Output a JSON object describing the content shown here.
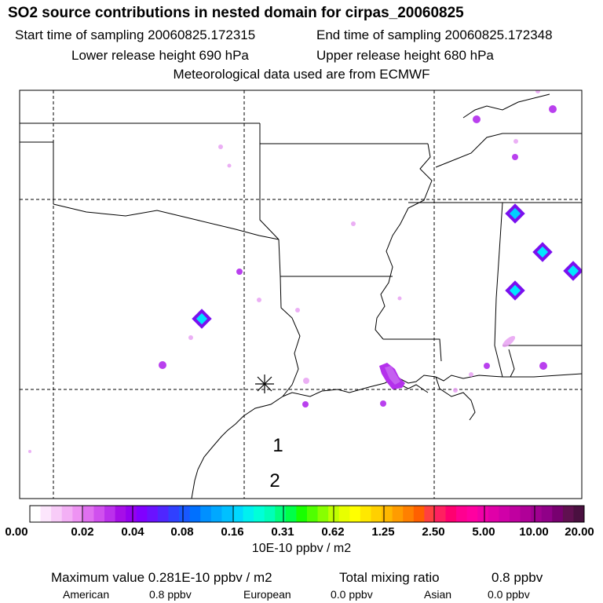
{
  "header": {
    "title": "SO2 source contributions in nested domain for cirpas_20060825",
    "start_time": "Start time of sampling 20060825.172315",
    "end_time": "End time of sampling 20060825.172348",
    "lower_height": "Lower release height  690 hPa",
    "upper_height": "Upper release height  680 hPa",
    "met_source": "Meteorological data used are from ECMWF"
  },
  "map": {
    "labels": [
      "1",
      "2"
    ],
    "release_marker": "asterisk"
  },
  "colorbar": {
    "ticks": [
      "0.00",
      "0.02",
      "0.04",
      "0.08",
      "0.16",
      "0.31",
      "0.62",
      "1.25",
      "2.50",
      "5.00",
      "10.00",
      "20.00"
    ],
    "units": "10E-10 ppbv / m2",
    "colors": [
      "#ffffff",
      "#fce6fc",
      "#f8ccf8",
      "#f3b0f5",
      "#ee93f3",
      "#e070f0",
      "#d050ee",
      "#bb30ec",
      "#a60ee8",
      "#9500f0",
      "#8000ff",
      "#6a12ff",
      "#4f26ff",
      "#3040ff",
      "#1858ff",
      "#0070ff",
      "#0090ff",
      "#00a8ff",
      "#00c0ff",
      "#00d8ff",
      "#00f0f0",
      "#00ffd8",
      "#00ffb8",
      "#00ff80",
      "#00ff48",
      "#18ff00",
      "#50ff00",
      "#88ff00",
      "#c0ff00",
      "#e8ff00",
      "#ffff00",
      "#ffe800",
      "#ffd000",
      "#ffb800",
      "#ff9c00",
      "#ff8000",
      "#ff6000",
      "#ff4040",
      "#ff2060",
      "#ff0070",
      "#ff0090",
      "#ff00a0",
      "#f000a8",
      "#e000a8",
      "#d000a8",
      "#c000a0",
      "#b00098",
      "#a00090",
      "#900088",
      "#780070",
      "#601050",
      "#4a1040"
    ]
  },
  "footer": {
    "max_value": "Maximum value  0.281E-10 ppbv / m2",
    "total_label": "Total mixing ratio",
    "total_value": "0.8 ppbv",
    "american_label": "American",
    "american_value": "0.8 ppbv",
    "european_label": "European",
    "european_value": "0.0 ppbv",
    "asian_label": "Asian",
    "asian_value": "0.0 ppbv"
  }
}
